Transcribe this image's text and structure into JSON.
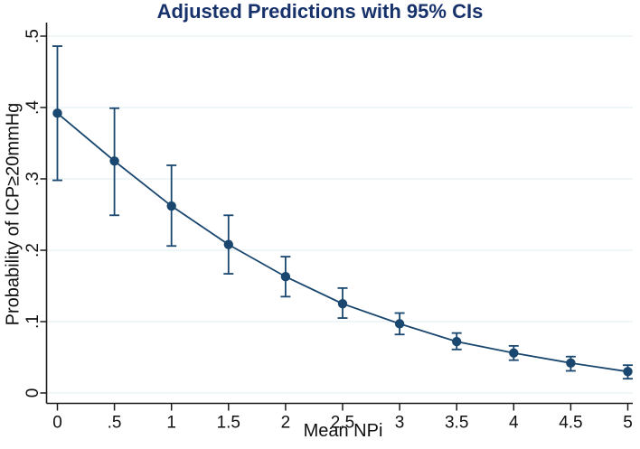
{
  "chart_data": {
    "type": "line",
    "title": "Adjusted Predictions with 95% CIs",
    "xlabel": "Mean NPi",
    "ylabel": "Probability of ICP≥20mmHg",
    "x": [
      0,
      0.5,
      1,
      1.5,
      2,
      2.5,
      3,
      3.5,
      4,
      4.5,
      5
    ],
    "series": [
      {
        "name": "Adjusted prediction",
        "values": [
          0.392,
          0.325,
          0.262,
          0.208,
          0.163,
          0.125,
          0.097,
          0.072,
          0.056,
          0.042,
          0.03
        ],
        "ci_low": [
          0.298,
          0.249,
          0.206,
          0.167,
          0.135,
          0.105,
          0.082,
          0.061,
          0.046,
          0.031,
          0.02
        ],
        "ci_high": [
          0.486,
          0.399,
          0.319,
          0.249,
          0.191,
          0.147,
          0.112,
          0.084,
          0.066,
          0.051,
          0.039
        ]
      }
    ],
    "xlim": [
      0,
      5
    ],
    "ylim": [
      0,
      0.5
    ],
    "xticks": {
      "values": [
        0,
        0.5,
        1,
        1.5,
        2,
        2.5,
        3,
        3.5,
        4,
        4.5,
        5
      ],
      "labels": [
        "0",
        ".5",
        "1",
        "1.5",
        "2",
        "2.5",
        "3",
        "3.5",
        "4",
        "4.5",
        "5"
      ]
    },
    "yticks": {
      "values": [
        0,
        0.1,
        0.2,
        0.3,
        0.4,
        0.5
      ],
      "labels": [
        "0",
        ".1",
        ".2",
        ".3",
        ".4",
        ".5"
      ]
    },
    "grid": "horizontal-only",
    "legend": "none",
    "colors": {
      "series": "#1a476f",
      "title": "#17316b",
      "gridline": "#e4f0f4",
      "axis": "#1a1a1a",
      "tick_text": "#111111",
      "background": "#ffffff"
    }
  }
}
